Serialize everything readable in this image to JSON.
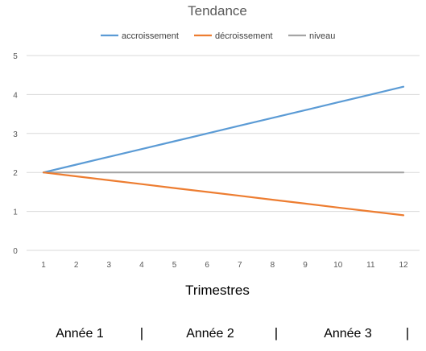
{
  "chart_data": {
    "type": "line",
    "title": "Tendance",
    "xlabel": "Trimestres",
    "ylabel": "",
    "x": [
      1,
      2,
      3,
      4,
      5,
      6,
      7,
      8,
      9,
      10,
      11,
      12
    ],
    "ylim": [
      0,
      5
    ],
    "yticks": [
      0,
      1,
      2,
      3,
      4,
      5
    ],
    "grid": true,
    "legend_position": "top",
    "series": [
      {
        "name": "accroissement",
        "color": "#5B9BD5",
        "values": [
          2.0,
          2.2,
          2.4,
          2.6,
          2.8,
          3.0,
          3.2,
          3.4,
          3.6,
          3.8,
          4.0,
          4.2
        ]
      },
      {
        "name": "décroissement",
        "color": "#ED7D31",
        "values": [
          2.0,
          1.9,
          1.8,
          1.7,
          1.6,
          1.5,
          1.4,
          1.3,
          1.2,
          1.1,
          1.0,
          0.9
        ]
      },
      {
        "name": "niveau",
        "color": "#A5A5A5",
        "values": [
          2,
          2,
          2,
          2,
          2,
          2,
          2,
          2,
          2,
          2,
          2,
          2
        ]
      }
    ]
  },
  "year_labels": [
    "Année 1",
    "Année 2",
    "Année 3"
  ],
  "separator": "|"
}
